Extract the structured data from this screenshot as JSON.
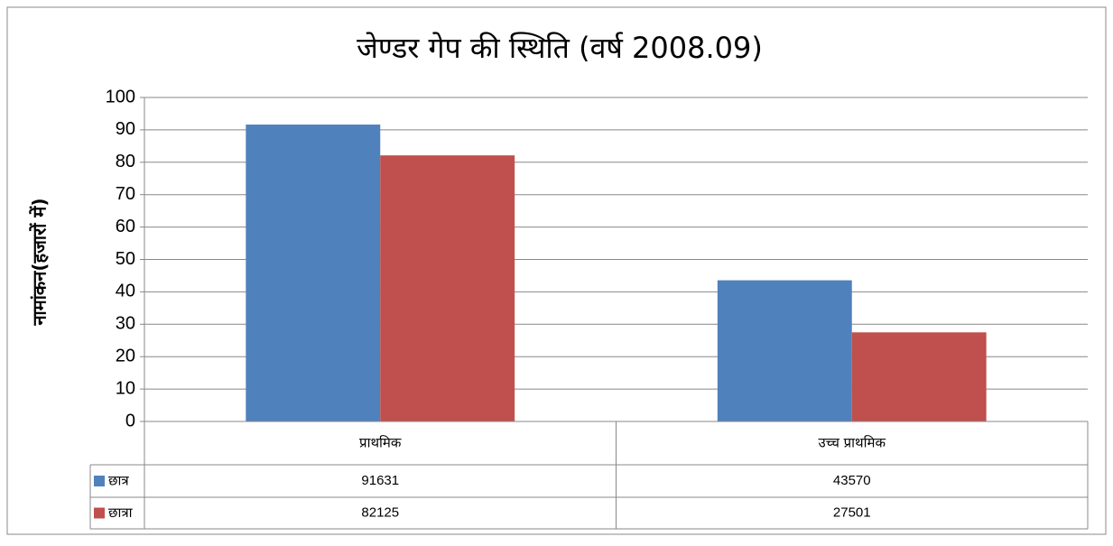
{
  "chart_data": {
    "type": "bar",
    "title": "जेण्डर गेप की स्थिति (वर्ष 2008.09)",
    "y_label": "नामांकन(हजारों में)",
    "categories": [
      "प्राथमिक",
      "उच्च प्राथमिक"
    ],
    "series": [
      {
        "name": "छात्र",
        "color": "#4f81bd",
        "values": [
          91.631,
          43.57
        ],
        "value_labels": [
          "91631",
          "43570"
        ]
      },
      {
        "name": "छात्रा",
        "color": "#c0504d",
        "values": [
          82.125,
          27.501
        ],
        "value_labels": [
          "82125",
          "27501"
        ]
      }
    ],
    "ylim": [
      0,
      100
    ],
    "yticks": [
      0,
      10,
      20,
      30,
      40,
      50,
      60,
      70,
      80,
      90,
      100
    ],
    "grid": true
  }
}
